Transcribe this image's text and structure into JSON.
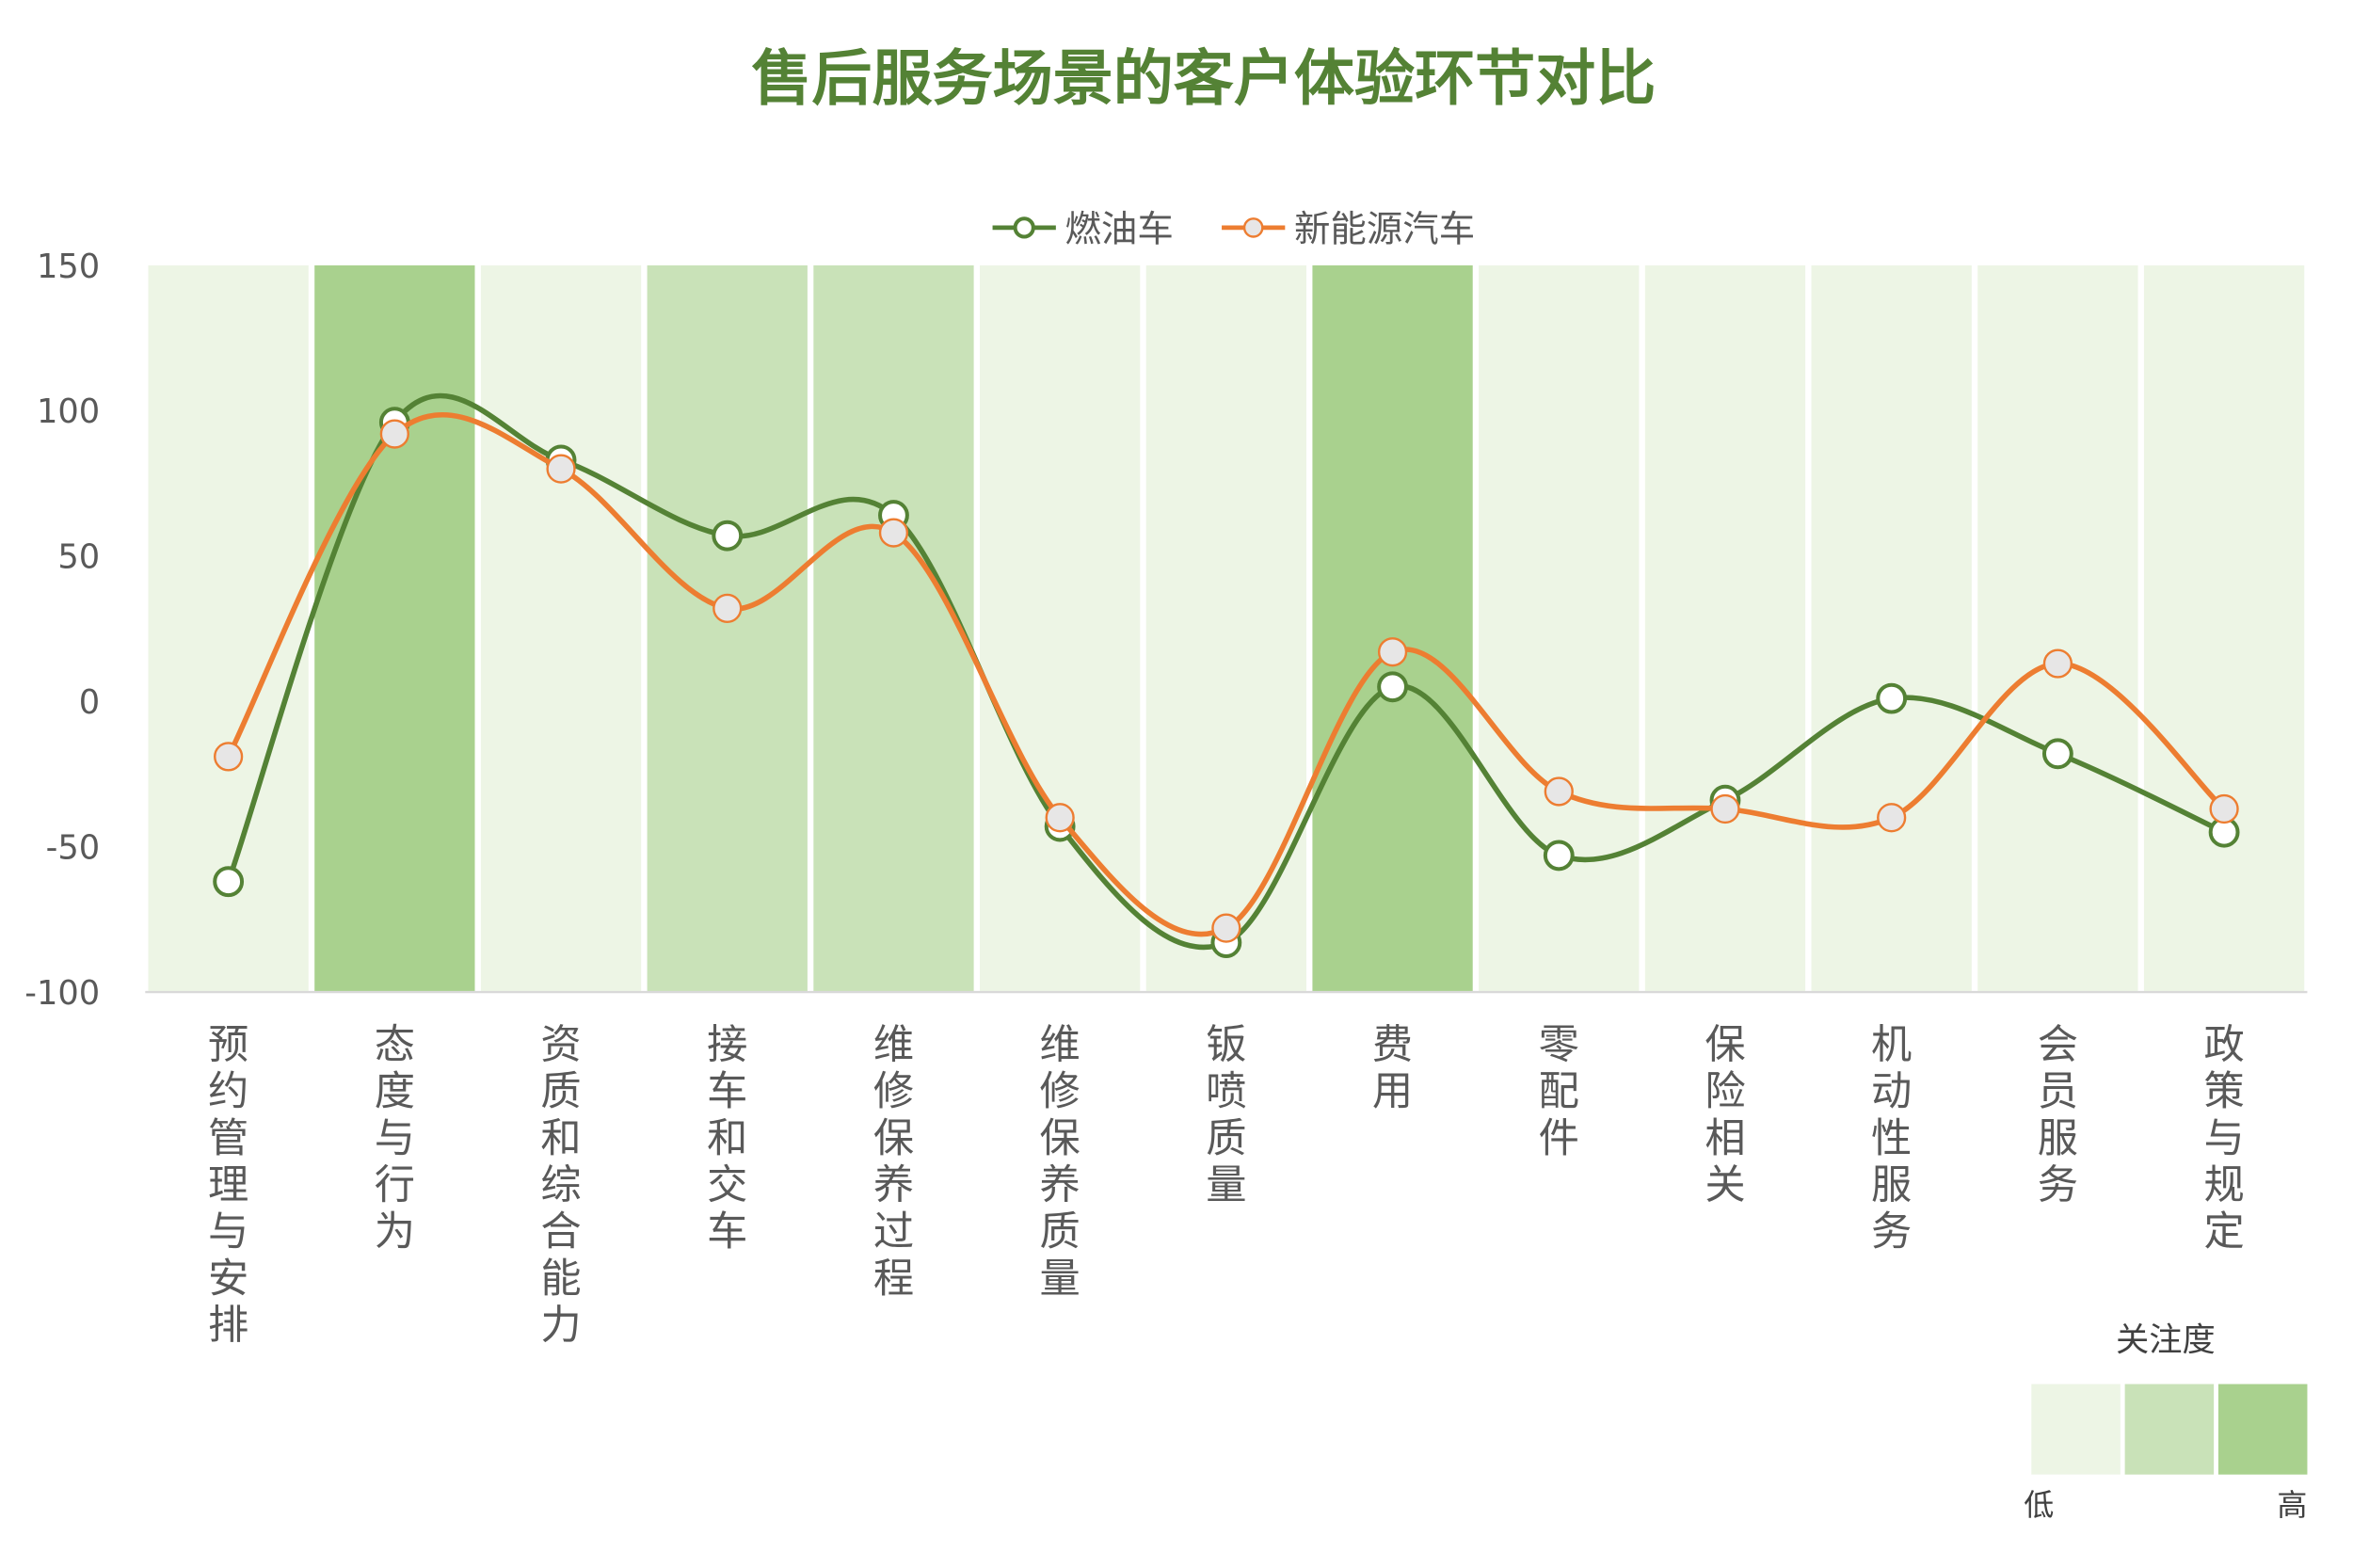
{
  "chart_data": {
    "type": "line",
    "title": "售后服务场景的客户体验环节对比",
    "categories": [
      "预约管理与安排",
      "态度与行为",
      "资质和综合能力",
      "接车和交车",
      "维修保养过程",
      "维修保养质量",
      "钣喷质量",
      "费用",
      "零配件",
      "保险相关",
      "机动性服务",
      "会员服务",
      "政策与规定"
    ],
    "series": [
      {
        "name": "燃油车",
        "color": "#548235",
        "values": [
          -62,
          96,
          83,
          57,
          64,
          -43,
          -83,
          5,
          -53,
          -34,
          1,
          -18,
          -45
        ]
      },
      {
        "name": "新能源汽车",
        "color": "#ED7D31",
        "values": [
          -19,
          92,
          80,
          32,
          58,
          -40,
          -78,
          17,
          -31,
          -37,
          -40,
          13,
          -37
        ]
      }
    ],
    "attention_levels": [
      0,
      2,
      0,
      1,
      1,
      0,
      0,
      2,
      0,
      0,
      0,
      0,
      0
    ],
    "attention_colors": [
      "#EDF5E5",
      "#C9E2B8",
      "#A9D18E"
    ],
    "ylim": [
      -100,
      150
    ],
    "yticks": [
      150,
      100,
      50,
      0,
      -50,
      -100
    ],
    "legend_position": "top-center",
    "attention_legend": {
      "title": "关注度",
      "low": "低",
      "high": "高"
    },
    "title_color": "#548235"
  }
}
